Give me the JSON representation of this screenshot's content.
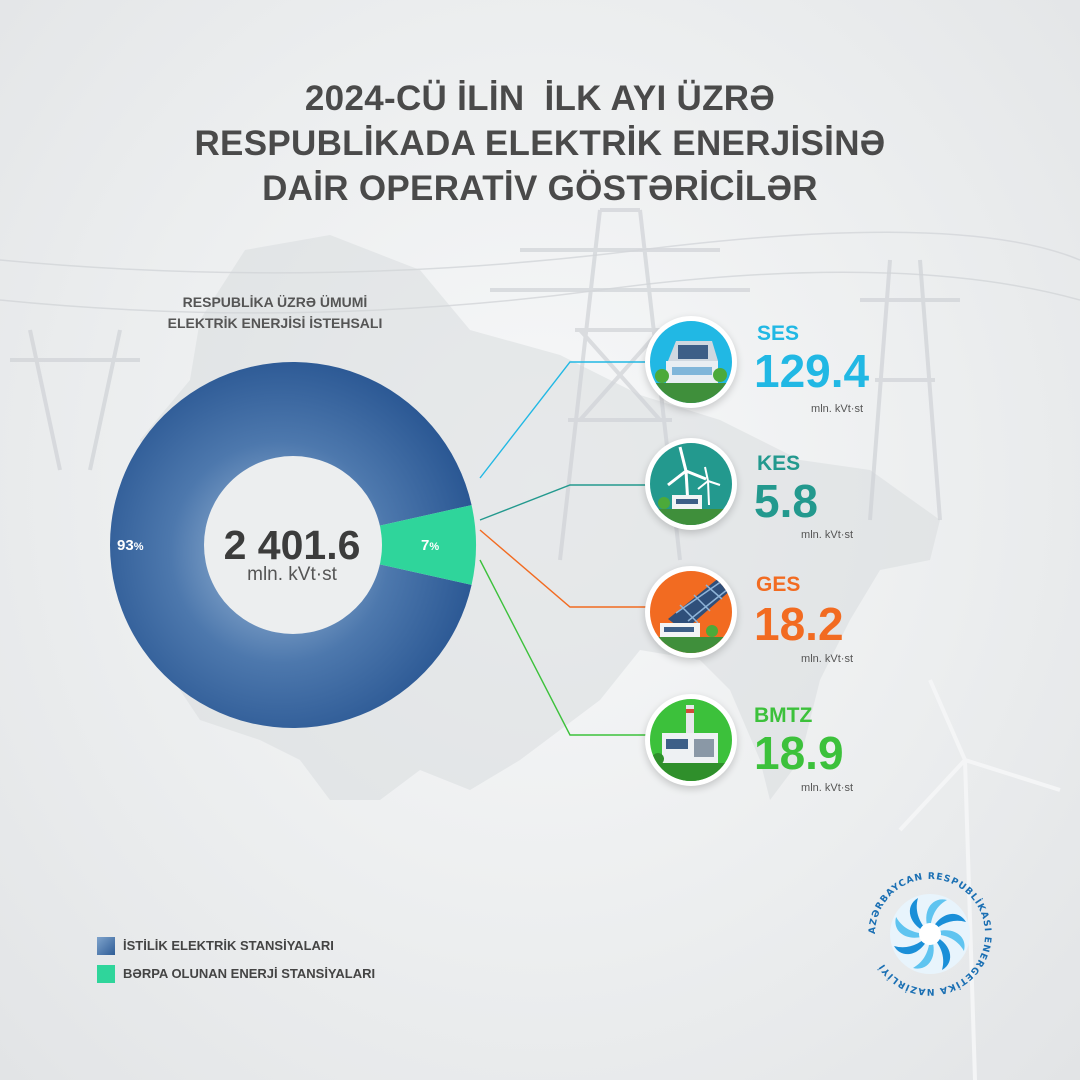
{
  "title_lines": [
    "2024-CÜ İLİN  İLK AYI ÜZRƏ",
    "RESPUBLİKADA ELEKTRİK ENERJİSİNƏ",
    "DAİR OPERATİV GÖSTƏRİCİLƏR"
  ],
  "chart_data": {
    "type": "pie",
    "title": "RESPUBLİKA ÜZRƏ ÜMUMİ ELEKTRİK ENERJİSİ İSTEHSALI",
    "title_lines": [
      "RESPUBLİKA ÜZRƏ ÜMUMİ",
      "ELEKTRİK ENERJİSİ İSTEHSALI"
    ],
    "donut": true,
    "center_value": "2 401.6",
    "center_unit": "mln. kVt·st",
    "slices": [
      {
        "name": "İSTİLİK ELEKTRİK STANSİYALARI",
        "value": 93,
        "label": "93",
        "suffix": "%",
        "color": "#2f5d96"
      },
      {
        "name": "BƏRPA OLUNAN ENERJİ STANSİYALARI",
        "value": 7,
        "label": "7",
        "suffix": "%",
        "color": "#2fd59b"
      }
    ],
    "breakdown": [
      {
        "name": "SES",
        "value": "129.4",
        "unit": "mln. kVt·st",
        "color": "#21b8e4",
        "icon": "solar-plant-icon"
      },
      {
        "name": "KES",
        "value": "5.8",
        "unit": "mln. kVt·st",
        "color": "#23998e",
        "icon": "wind-turbine-icon"
      },
      {
        "name": "GES",
        "value": "18.2",
        "unit": "mln. kVt·st",
        "color": "#f26b21",
        "icon": "solar-panel-icon"
      },
      {
        "name": "BMTZ",
        "value": "18.9",
        "unit": "mln. kVt·st",
        "color": "#3cc13b",
        "icon": "waste-plant-icon"
      }
    ],
    "legend": [
      "İSTİLİK ELEKTRİK STANSİYALARI",
      "BƏRPA OLUNAN ENERJİ STANSİYALARI"
    ],
    "legend_position": "bottom-left"
  },
  "logo": {
    "text": "AZƏRBAYCAN RESPUBLİKASI ENERGETİKA NAZİRLİYİ",
    "colors": [
      "#1a8fd8",
      "#5fc4f0"
    ]
  }
}
